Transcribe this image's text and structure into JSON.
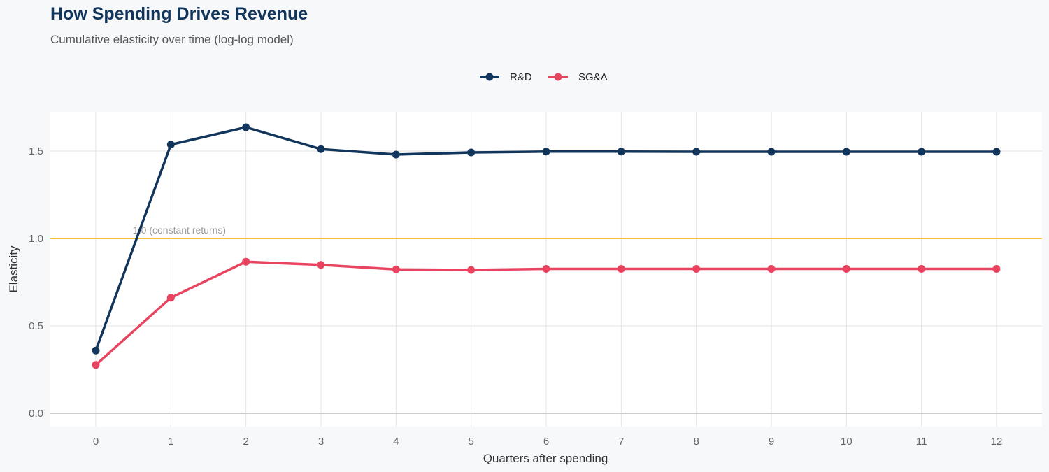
{
  "chart_data": {
    "type": "line",
    "title": "How Spending Drives Revenue",
    "subtitle": "Cumulative elasticity over time (log-log model)",
    "xlabel": "Quarters after spending",
    "ylabel": "Elasticity",
    "x": [
      0,
      1,
      2,
      3,
      4,
      5,
      6,
      7,
      8,
      9,
      10,
      11,
      12
    ],
    "xlim": [
      -0.6,
      12.6
    ],
    "ylim": [
      -0.08,
      1.72
    ],
    "yticks": [
      "0.0",
      "0.5",
      "1.0",
      "1.5"
    ],
    "ytick_values": [
      0,
      0.5,
      1.0,
      1.5
    ],
    "xticks": [
      "0",
      "1",
      "2",
      "3",
      "4",
      "5",
      "6",
      "7",
      "8",
      "9",
      "10",
      "11",
      "12"
    ],
    "grid": true,
    "legend_position": "top",
    "series": [
      {
        "name": "R&D",
        "color": "#12355b",
        "values": [
          0.359,
          1.537,
          1.636,
          1.511,
          1.48,
          1.492,
          1.497,
          1.497,
          1.496,
          1.496,
          1.496,
          1.496,
          1.496
        ]
      },
      {
        "name": "SG&A",
        "color": "#e8445f",
        "values": [
          0.277,
          0.661,
          0.867,
          0.849,
          0.823,
          0.82,
          0.826,
          0.826,
          0.826,
          0.826,
          0.826,
          0.826,
          0.826
        ]
      }
    ],
    "reference_line": {
      "y": 1.0,
      "label": "1.0 (constant returns)",
      "color": "#f5c242"
    }
  }
}
